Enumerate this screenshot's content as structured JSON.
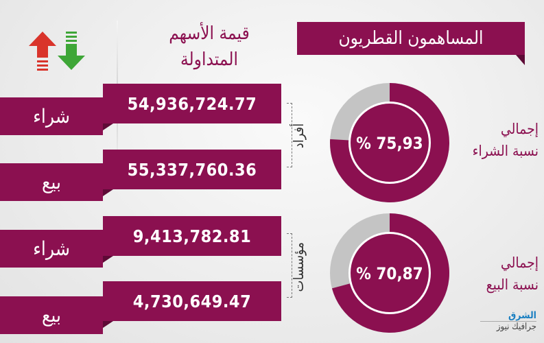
{
  "title": "المساهمون القطريون",
  "column_header": {
    "line1": "قيمة الأسهم",
    "line2": "المتداولة"
  },
  "icons": {
    "up": "arrow-up-icon",
    "down": "arrow-down-icon",
    "up_color": "#d9342b",
    "down_color": "#3ea637"
  },
  "colors": {
    "accent": "#8b1050",
    "secondary": "#c4c4c4"
  },
  "groups": [
    {
      "label": "أفراد",
      "rows": [
        {
          "label": "شراء",
          "value": "54,936,724.77"
        },
        {
          "label": "بيع",
          "value": "55,337,760.36"
        }
      ]
    },
    {
      "label": "مؤسسات",
      "rows": [
        {
          "label": "شراء",
          "value": "9,413,782.81"
        },
        {
          "label": "بيع",
          "value": "4,730,649.47"
        }
      ]
    }
  ],
  "donuts": [
    {
      "label1": "إجمالي",
      "label2": "نسبة الشراء",
      "percent_text": "% 75,93",
      "percent": 75.93
    },
    {
      "label1": "إجمالي",
      "label2": "نسبة البيع",
      "percent_text": "% 70,87",
      "percent": 70.87
    }
  ],
  "logo": {
    "line1": "الشرق",
    "line2": "جرافيك نيوز"
  }
}
